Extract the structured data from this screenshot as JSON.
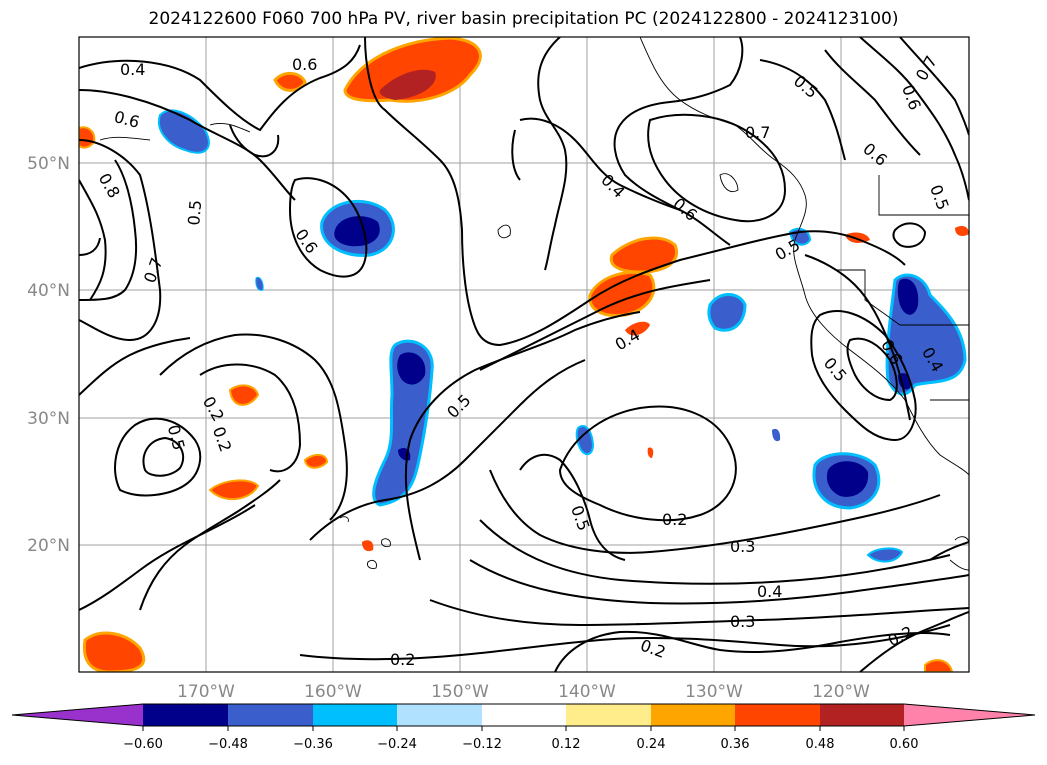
{
  "title": "2024122600 F060 700 hPa PV, river basin precipitation PC (2024122800 - 2024123100)",
  "map": {
    "lon_ticks": [
      "170°W",
      "160°W",
      "150°W",
      "140°W",
      "130°W",
      "120°W"
    ],
    "lat_ticks": [
      "50°N",
      "40°N",
      "30°N",
      "20°N"
    ],
    "contour_labels": [
      "0.4",
      "0.6",
      "0.6",
      "0.8",
      "0.5",
      "0.7",
      "0.6",
      "0.4",
      "0.6",
      "0.5",
      "0.7",
      "0.5",
      "0.6",
      "0.5",
      "0.7",
      "0.6",
      "0.5",
      "0.4",
      "0.6",
      "0.4",
      "0.5",
      "0.2",
      "0.5",
      "0.2",
      "0.5",
      "0.2",
      "0.3",
      "0.4",
      "0.3",
      "0.2",
      "0.2",
      "0.2"
    ]
  },
  "colorbar": {
    "ticks": [
      "−0.60",
      "−0.48",
      "−0.36",
      "−0.24",
      "−0.12",
      "0.12",
      "0.24",
      "0.36",
      "0.48",
      "0.60"
    ],
    "colors": [
      "#9932cc",
      "#00008b",
      "#3a5fcd",
      "#00bfff",
      "#b0e2ff",
      "#ffffff",
      "#ffec8b",
      "#ffa500",
      "#ff4500",
      "#b22222",
      "#ff82ab"
    ]
  }
}
